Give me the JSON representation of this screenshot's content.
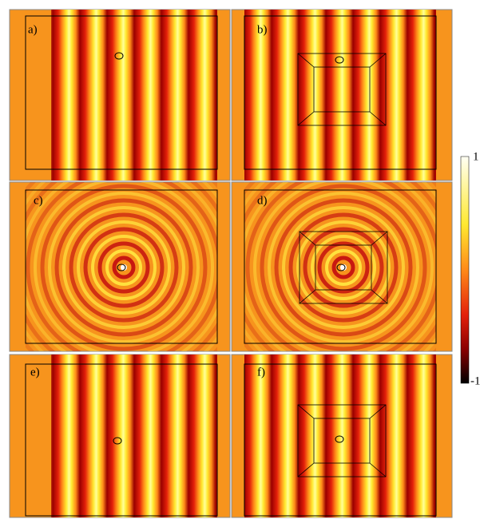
{
  "panels": [
    {
      "label": "a)"
    },
    {
      "label": "b)"
    },
    {
      "label": "c)"
    },
    {
      "label": "d)"
    },
    {
      "label": "e)"
    },
    {
      "label": "f)"
    }
  ],
  "colorbar": {
    "max": "1",
    "min": "-1"
  }
}
